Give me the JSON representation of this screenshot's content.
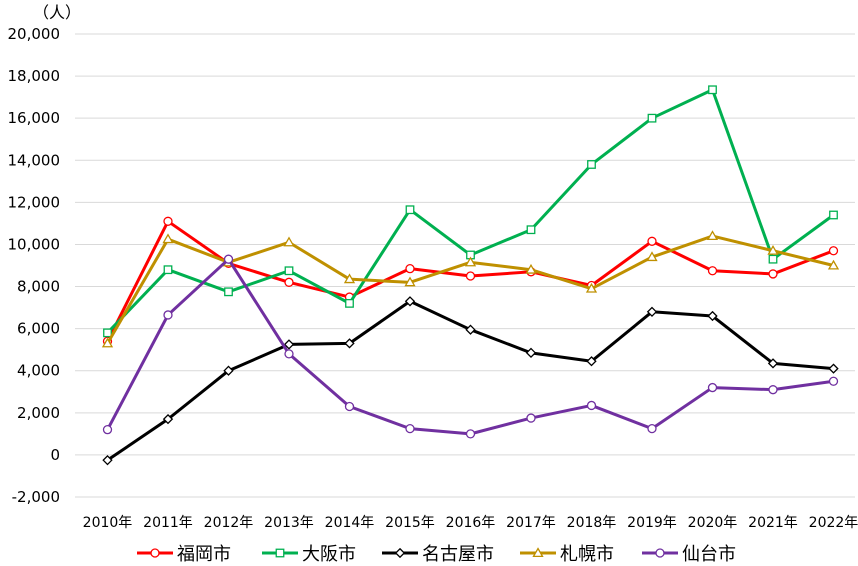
{
  "chart_data": {
    "type": "line",
    "unit_label": "（人）",
    "categories": [
      "2010年",
      "2011年",
      "2012年",
      "2013年",
      "2014年",
      "2015年",
      "2016年",
      "2017年",
      "2018年",
      "2019年",
      "2020年",
      "2021年",
      "2022年"
    ],
    "ylim": [
      -2000,
      20000
    ],
    "yticks": [
      20000,
      18000,
      16000,
      14000,
      12000,
      10000,
      8000,
      6000,
      4000,
      2000,
      0,
      -2000
    ],
    "ytick_labels": [
      "20,000",
      "18,000",
      "16,000",
      "14,000",
      "12,000",
      "10,000",
      "8,000",
      "6,000",
      "4,000",
      "2,000",
      "0",
      "-2,000"
    ],
    "negative_tick_color": "#ff0000",
    "grid": "horizontal",
    "legend_position": "bottom",
    "series": [
      {
        "name": "福岡市",
        "color": "#ff0000",
        "marker": "circle",
        "values": [
          5400,
          11100,
          9100,
          8200,
          7500,
          8850,
          8500,
          8700,
          8050,
          10150,
          8750,
          8600,
          9700
        ]
      },
      {
        "name": "大阪市",
        "color": "#00b050",
        "marker": "square",
        "values": [
          5800,
          8800,
          7750,
          8750,
          7200,
          11650,
          9500,
          10700,
          13800,
          16000,
          17350,
          9300,
          11400
        ]
      },
      {
        "name": "名古屋市",
        "color": "#000000",
        "marker": "diamond",
        "values": [
          -250,
          1700,
          4000,
          5250,
          5300,
          7300,
          5950,
          4850,
          4450,
          6800,
          6600,
          4350,
          4100
        ]
      },
      {
        "name": "札幌市",
        "color": "#bf9000",
        "marker": "triangle",
        "values": [
          5300,
          10250,
          9150,
          10100,
          8350,
          8200,
          9150,
          8800,
          7900,
          9400,
          10400,
          9700,
          9000
        ]
      },
      {
        "name": "仙台市",
        "color": "#7030a0",
        "marker": "circle",
        "values": [
          1200,
          6650,
          9300,
          4800,
          2300,
          1250,
          1000,
          1750,
          2350,
          1250,
          3200,
          3100,
          3500
        ]
      }
    ]
  }
}
